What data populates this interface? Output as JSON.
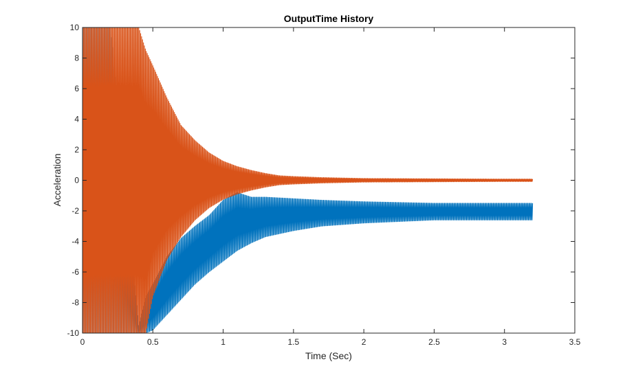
{
  "chart_data": {
    "type": "line",
    "title": "OutputTime History",
    "xlabel": "Time (Sec)",
    "ylabel": "Acceleration",
    "xlim": [
      0,
      3.5
    ],
    "ylim": [
      -10,
      10
    ],
    "xticks": [
      0,
      0.5,
      1,
      1.5,
      2,
      2.5,
      3,
      3.5
    ],
    "xtick_labels": [
      "0",
      "0.5",
      "1",
      "1.5",
      "2",
      "2.5",
      "3",
      "3.5"
    ],
    "yticks": [
      -10,
      -8,
      -6,
      -4,
      -2,
      0,
      2,
      4,
      6,
      8,
      10
    ],
    "ytick_labels": [
      "-10",
      "-8",
      "-6",
      "-4",
      "-2",
      "0",
      "2",
      "4",
      "6",
      "8",
      "10"
    ],
    "grid": false,
    "series": [
      {
        "color": "#0072BD",
        "x": [
          0.0,
          0.2,
          0.4,
          0.45,
          0.5,
          0.6,
          0.7,
          0.8,
          0.9,
          1.0,
          1.1,
          1.2,
          1.3,
          1.5,
          1.7,
          2.0,
          2.5,
          3.0,
          3.2
        ],
        "ymax": [
          10,
          10,
          -9.5,
          -7.6,
          -6.8,
          -5.0,
          -3.8,
          -3.0,
          -2.3,
          -1.3,
          -0.8,
          -1.1,
          -1.1,
          -1.2,
          -1.3,
          -1.4,
          -1.5,
          -1.5,
          -1.5
        ],
        "ymin": [
          -10,
          -10,
          -10,
          -10,
          -9.8,
          -8.8,
          -7.8,
          -6.8,
          -6.0,
          -5.3,
          -4.6,
          -4.1,
          -3.7,
          -3.3,
          -3.0,
          -2.8,
          -2.6,
          -2.6,
          -2.6
        ]
      },
      {
        "color": "#D95319",
        "x": [
          0.0,
          0.1,
          0.2,
          0.3,
          0.4,
          0.45,
          0.5,
          0.6,
          0.7,
          0.8,
          0.9,
          1.0,
          1.1,
          1.2,
          1.3,
          1.4,
          1.5,
          1.7,
          2.0,
          2.5,
          3.0,
          3.2
        ],
        "ymax": [
          10,
          10,
          10,
          10,
          10,
          8.5,
          7.5,
          5.4,
          3.6,
          2.6,
          1.8,
          1.25,
          0.9,
          0.65,
          0.45,
          0.3,
          0.25,
          0.18,
          0.12,
          0.1,
          0.08,
          0.08
        ],
        "ymin": [
          -10,
          -10,
          -10,
          -10,
          -10,
          -10,
          -7.6,
          -5.2,
          -3.7,
          -2.6,
          -1.8,
          -1.25,
          -0.9,
          -0.65,
          -0.45,
          -0.3,
          -0.25,
          -0.18,
          -0.12,
          -0.1,
          -0.08,
          -0.08
        ]
      }
    ]
  }
}
